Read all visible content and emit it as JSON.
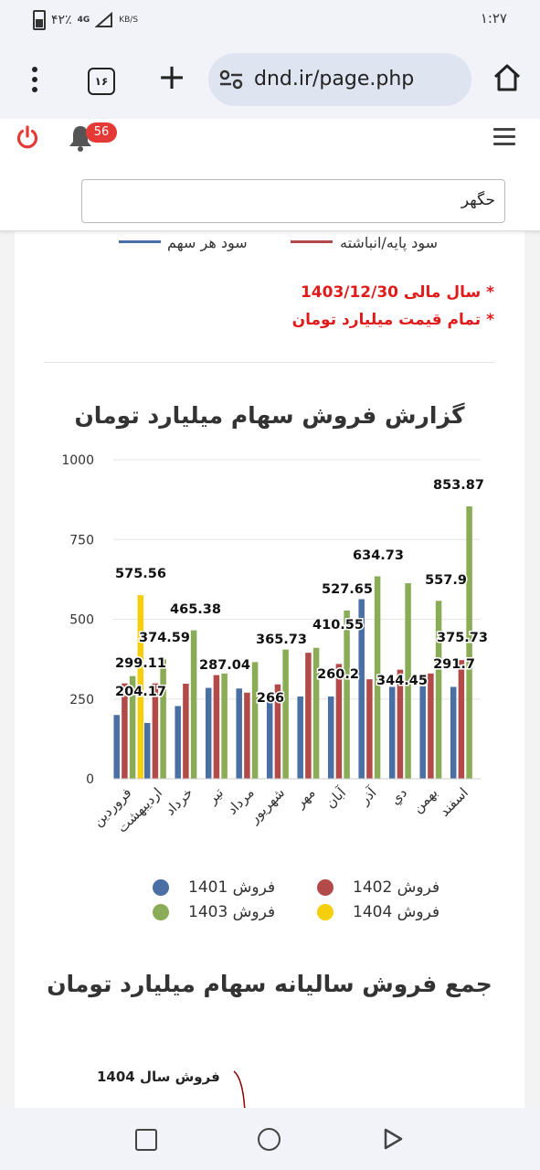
{
  "status_bar": {
    "battery": "۴۲٪",
    "network": "4G",
    "speed_unit": "KB/S",
    "time": "۱:۲۷"
  },
  "browser": {
    "tab_count": "۱۶",
    "url": "dnd.ir/page.php"
  },
  "header": {
    "notification_count": "56",
    "search_value": "حگهر"
  },
  "top_legend": {
    "item1": "سود هر سهم",
    "item1_color": "#4a6fa5",
    "item2": "سود پایه/انباشته",
    "item2_color": "#b34a4a"
  },
  "notes": {
    "fiscal_year": "* سال مالی 1403/12/30",
    "unit": "* تمام قیمت میلیارد تومان"
  },
  "chart_title": "گزارش فروش سهام میلیارد تومان",
  "chart_data": {
    "type": "bar",
    "title": "گزارش فروش سهام میلیارد تومان",
    "xlabel": "",
    "ylabel": "",
    "ylim": [
      0,
      1000
    ],
    "yticks": [
      "0",
      "250",
      "500",
      "750",
      "1000"
    ],
    "grid": true,
    "legend_position": "bottom",
    "categories": [
      "فروردین",
      "اردیبهشت",
      "خرداد",
      "تیر",
      "مرداد",
      "شهریور",
      "مهر",
      "آبان",
      "آذر",
      "دي",
      "بهمن",
      "اسفند"
    ],
    "series": [
      {
        "name": "فروش 1401",
        "color": "#4a6fa5",
        "values": [
          200,
          175,
          228,
          285,
          283,
          262,
          258,
          258,
          563,
          288,
          290,
          288
        ]
      },
      {
        "name": "فروش 1402",
        "color": "#b34a4a",
        "values": [
          299,
          299,
          298,
          325,
          270,
          296,
          395,
          360,
          312,
          342,
          330,
          372
        ]
      },
      {
        "name": "فروش 1403",
        "color": "#8aac56",
        "values": [
          322,
          374.59,
          465.38,
          330,
          365.73,
          405,
          410.55,
          527.65,
          634.73,
          613,
          557.9,
          853.87
        ]
      },
      {
        "name": "فروش 1404",
        "color": "#f5cf0c",
        "values": [
          575.56,
          null,
          null,
          null,
          null,
          null,
          null,
          null,
          null,
          null,
          null,
          null
        ]
      }
    ],
    "data_labels": [
      "575.56",
      "299.11",
      "204.17",
      "374.59",
      "465.38",
      "287.04",
      "365.73",
      "266",
      "410.55",
      "260.2",
      "527.65",
      "634.73",
      "344.45",
      "557.9",
      "291.7",
      "375.73",
      "853.87"
    ]
  },
  "legend": {
    "s1401": "فروش 1401",
    "s1402": "فروش 1402",
    "s1403": "فروش 1403",
    "s1404": "فروش 1404"
  },
  "chart2": {
    "title": "جمع فروش سالیانه سهام میلیارد تومان",
    "series_label": "فروش سال 1404"
  }
}
